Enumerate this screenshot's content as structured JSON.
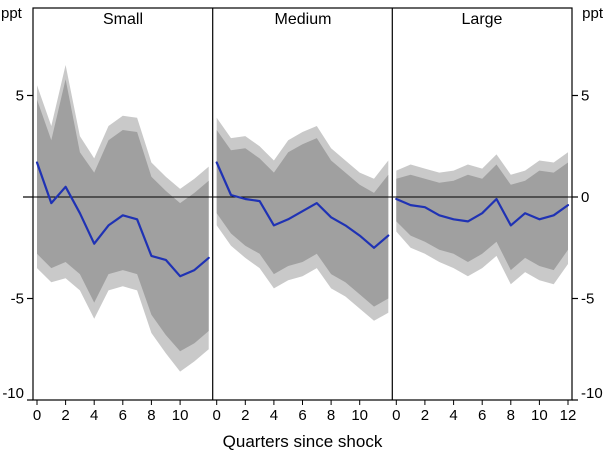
{
  "page": {
    "background": "#ffffff"
  },
  "chart_data": {
    "type": "line",
    "subtype": "impulse-response-fan-chart",
    "title": "",
    "xlabel": "Quarters since shock",
    "ylabel": "ppt",
    "unit_label_left": "ppt",
    "unit_label_right": "ppt",
    "grid": false,
    "legend": "none",
    "xlim": [
      0,
      12
    ],
    "ylim": [
      -10,
      9.3
    ],
    "x": [
      0,
      1,
      2,
      3,
      4,
      5,
      6,
      7,
      8,
      9,
      10,
      11,
      12
    ],
    "x_tick_values": [
      0,
      2,
      4,
      6,
      8,
      10,
      12
    ],
    "x_axis_labels_per_panel": [
      [
        "0",
        "2",
        "4",
        "6",
        "8",
        "10"
      ],
      [
        "0",
        "2",
        "4",
        "6",
        "8",
        "10"
      ],
      [
        "0",
        "2",
        "4",
        "6",
        "8",
        "10",
        "12"
      ]
    ],
    "y_tick_values": [
      5,
      0,
      -5,
      -10
    ],
    "y_tick_labels_left": [
      "5",
      "",
      "-5",
      "-10"
    ],
    "y_tick_labels_right": [
      "5",
      "0",
      "-5",
      "-10"
    ],
    "colors": {
      "line": "#1f32b4",
      "band_inner": "#a0a0a0",
      "band_outer": "#c9c9c9",
      "axis": "#000000",
      "background": "#ffffff"
    },
    "panels": [
      {
        "title": "Small",
        "line": [
          1.7,
          -0.3,
          0.5,
          -0.8,
          -2.3,
          -1.4,
          -0.9,
          -1.1,
          -2.9,
          -3.1,
          -3.9,
          -3.6,
          -3.0
        ],
        "band_inner_upper": [
          4.8,
          2.8,
          5.8,
          2.2,
          1.2,
          2.8,
          3.3,
          3.2,
          1.0,
          0.3,
          -0.3,
          0.2,
          0.8
        ],
        "band_inner_lower": [
          -2.8,
          -3.5,
          -3.2,
          -3.8,
          -5.2,
          -3.8,
          -3.6,
          -3.8,
          -5.8,
          -6.8,
          -7.6,
          -7.2,
          -6.6
        ],
        "band_outer_upper": [
          5.5,
          3.5,
          6.5,
          3.0,
          1.9,
          3.5,
          4.0,
          3.9,
          1.7,
          1.0,
          0.4,
          0.9,
          1.5
        ],
        "band_outer_lower": [
          -3.5,
          -4.2,
          -4.0,
          -4.6,
          -6.0,
          -4.6,
          -4.4,
          -4.6,
          -6.7,
          -7.7,
          -8.6,
          -8.1,
          -7.5
        ]
      },
      {
        "title": "Medium",
        "line": [
          1.7,
          0.1,
          -0.1,
          -0.2,
          -1.4,
          -1.1,
          -0.7,
          -0.3,
          -1.0,
          -1.4,
          -1.9,
          -2.5,
          -1.9
        ],
        "band_inner_upper": [
          3.3,
          2.3,
          2.4,
          1.9,
          1.2,
          2.2,
          2.6,
          2.9,
          1.8,
          1.2,
          0.6,
          0.2,
          1.1
        ],
        "band_inner_lower": [
          -0.8,
          -1.8,
          -2.4,
          -2.8,
          -3.8,
          -3.4,
          -3.2,
          -2.8,
          -3.8,
          -4.2,
          -4.8,
          -5.4,
          -5.0
        ],
        "band_outer_upper": [
          3.9,
          2.9,
          3.0,
          2.5,
          1.8,
          2.8,
          3.2,
          3.5,
          2.4,
          1.8,
          1.2,
          0.9,
          1.8
        ],
        "band_outer_lower": [
          -1.4,
          -2.4,
          -3.0,
          -3.5,
          -4.5,
          -4.1,
          -3.9,
          -3.5,
          -4.5,
          -4.9,
          -5.5,
          -6.1,
          -5.7
        ]
      },
      {
        "title": "Large",
        "line": [
          -0.1,
          -0.4,
          -0.5,
          -0.9,
          -1.1,
          -1.2,
          -0.8,
          -0.1,
          -1.4,
          -0.8,
          -1.1,
          -0.9,
          -0.4
        ],
        "band_inner_upper": [
          0.9,
          1.1,
          0.9,
          0.7,
          0.8,
          1.1,
          0.9,
          1.6,
          0.6,
          0.8,
          1.3,
          1.2,
          1.7
        ],
        "band_inner_lower": [
          -1.2,
          -1.9,
          -2.2,
          -2.6,
          -2.8,
          -3.2,
          -2.8,
          -2.2,
          -3.6,
          -3.0,
          -3.4,
          -3.6,
          -2.6
        ],
        "band_outer_upper": [
          1.3,
          1.6,
          1.4,
          1.2,
          1.3,
          1.6,
          1.4,
          2.1,
          1.1,
          1.3,
          1.8,
          1.7,
          2.2
        ],
        "band_outer_lower": [
          -1.7,
          -2.5,
          -2.8,
          -3.2,
          -3.5,
          -3.9,
          -3.5,
          -2.9,
          -4.3,
          -3.7,
          -4.1,
          -4.3,
          -3.3
        ]
      }
    ]
  }
}
